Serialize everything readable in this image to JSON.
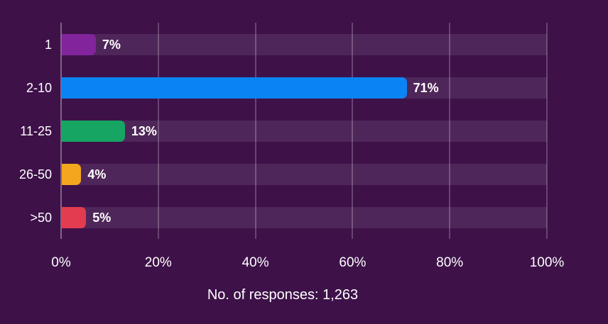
{
  "chart_data": {
    "type": "bar",
    "orientation": "horizontal",
    "title": "",
    "categories": [
      "1",
      "2-10",
      "11-25",
      "26-50",
      ">50"
    ],
    "values": [
      7,
      71,
      13,
      4,
      5
    ],
    "value_labels": [
      "7%",
      "71%",
      "13%",
      "4%",
      "5%"
    ],
    "bar_colors": [
      "#82249c",
      "#0a84f5",
      "#17a563",
      "#f3a71e",
      "#e33b4f"
    ],
    "x_tick_labels": [
      "0%",
      "20%",
      "40%",
      "60%",
      "80%",
      "100%"
    ],
    "x_tick_values": [
      0,
      20,
      40,
      60,
      80,
      100
    ],
    "xlim": [
      0,
      100
    ],
    "grid": "vertical",
    "legend": "none",
    "caption": "No. of responses: 1,263"
  },
  "colors": {
    "background": "#3e1149",
    "track": "rgba(255,255,255,0.09)",
    "gridline": "rgba(255,255,255,0.22)",
    "zero_axis": "rgba(255,255,255,0.35)",
    "text": "#ffffff"
  }
}
